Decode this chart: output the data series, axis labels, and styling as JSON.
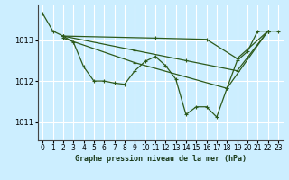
{
  "title": "Graphe pression niveau de la mer (hPa)",
  "bg_color": "#cceeff",
  "grid_color": "#ffffff",
  "line_color": "#2d5a1b",
  "xlim": [
    -0.5,
    23.5
  ],
  "ylim": [
    1010.55,
    1013.85
  ],
  "yticks": [
    1011,
    1012,
    1013
  ],
  "xticks": [
    0,
    1,
    2,
    3,
    4,
    5,
    6,
    7,
    8,
    9,
    10,
    11,
    12,
    13,
    14,
    15,
    16,
    17,
    18,
    19,
    20,
    21,
    22,
    23
  ],
  "line_main": {
    "x": [
      0,
      1,
      2,
      3,
      4,
      5,
      6,
      7,
      8,
      9,
      10,
      11,
      12,
      13,
      14,
      15,
      16,
      17,
      18,
      19,
      20,
      21,
      22,
      23
    ],
    "y": [
      1013.65,
      1013.22,
      1013.1,
      1012.95,
      1012.35,
      1012.0,
      1012.0,
      1011.95,
      1011.92,
      1012.25,
      1012.48,
      1012.6,
      1012.38,
      1012.05,
      1011.18,
      1011.37,
      1011.37,
      1011.12,
      1011.82,
      1012.5,
      1012.72,
      1013.22,
      1013.22,
      1013.22
    ]
  },
  "line2": {
    "x": [
      2,
      11,
      16,
      19,
      22
    ],
    "y": [
      1013.1,
      1013.05,
      1013.02,
      1012.55,
      1013.22
    ]
  },
  "line3": {
    "x": [
      2,
      9,
      14,
      19,
      22
    ],
    "y": [
      1013.1,
      1012.75,
      1012.5,
      1012.25,
      1013.22
    ]
  },
  "line4": {
    "x": [
      2,
      9,
      18,
      22
    ],
    "y": [
      1013.05,
      1012.45,
      1011.82,
      1013.22
    ]
  }
}
